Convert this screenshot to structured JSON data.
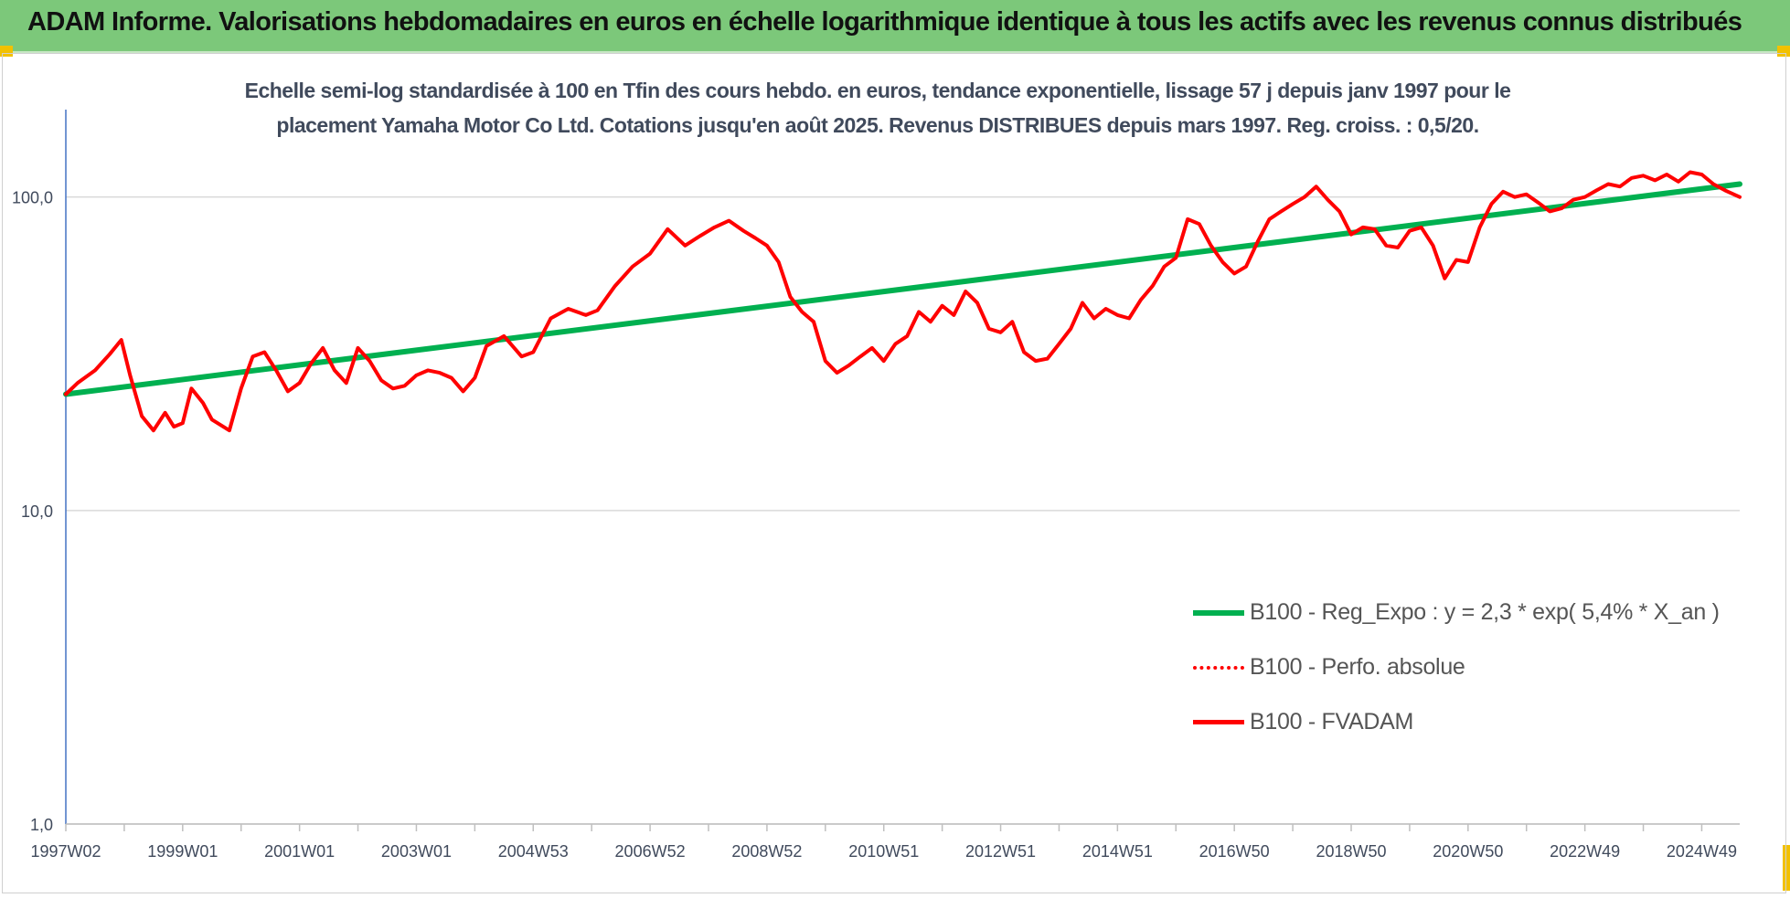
{
  "banner": {
    "title": "ADAM Informe. Valorisations hebdomadaires en euros en échelle logarithmique identique à tous les actifs avec les revenus connus distribués"
  },
  "colors": {
    "banner_bg": "#7cc87a",
    "trend": "#00b050",
    "series": "#ff0000",
    "corner": "#f2c100",
    "axis_text": "#404a5c"
  },
  "chart_data": {
    "type": "line",
    "title_lines": [
      "Echelle semi-log standardisée à 100 en Tfin des cours hebdo. en euros, tendance exponentielle, lissage 57 j depuis janv 1997 pour le",
      "placement Yamaha Motor Co Ltd. Cotations jusqu'en août 2025. Revenus DISTRIBUES depuis mars 1997. Reg. croiss. : 0,5/20."
    ],
    "y_scale": "log",
    "ylim": [
      1,
      190
    ],
    "y_ticks": [
      {
        "value": 1,
        "label": "1,0"
      },
      {
        "value": 10,
        "label": "10,0"
      },
      {
        "value": 100,
        "label": "100,0"
      }
    ],
    "xlim": [
      1997.0,
      2025.65
    ],
    "x_ticks": [
      {
        "value": 1997.0,
        "label": "1997W02"
      },
      {
        "value": 1999.0,
        "label": "1999W01"
      },
      {
        "value": 2001.0,
        "label": "2001W01"
      },
      {
        "value": 2003.0,
        "label": "2003W01"
      },
      {
        "value": 2005.0,
        "label": "2004W53"
      },
      {
        "value": 2007.0,
        "label": "2006W52"
      },
      {
        "value": 2009.0,
        "label": "2008W52"
      },
      {
        "value": 2011.0,
        "label": "2010W51"
      },
      {
        "value": 2013.0,
        "label": "2012W51"
      },
      {
        "value": 2015.0,
        "label": "2014W51"
      },
      {
        "value": 2017.0,
        "label": "2016W50"
      },
      {
        "value": 2019.0,
        "label": "2018W50"
      },
      {
        "value": 2021.0,
        "label": "2020W50"
      },
      {
        "value": 2023.0,
        "label": "2022W49"
      },
      {
        "value": 2025.0,
        "label": "2024W49"
      }
    ],
    "grid": "horizontal",
    "legend_position": "bottom-right",
    "series": [
      {
        "name": "B100 - Reg_Expo : y = 2,3 * exp( 5,4% *  X_an )",
        "style": "solid-thick",
        "color": "#00b050",
        "x": [
          1997.0,
          2025.65
        ],
        "y": [
          23.5,
          110.0
        ]
      },
      {
        "name": "B100 - Perfo. absolue",
        "style": "dotted",
        "color": "#ff0000",
        "x": [],
        "y": []
      },
      {
        "name": "B100 - FVADAM",
        "style": "solid",
        "color": "#ff0000",
        "x": [
          1997.0,
          1997.2,
          1997.5,
          1997.75,
          1997.95,
          1998.1,
          1998.3,
          1998.5,
          1998.7,
          1998.85,
          1999.0,
          1999.15,
          1999.35,
          1999.5,
          1999.8,
          2000.0,
          2000.2,
          2000.4,
          2000.6,
          2000.8,
          2001.0,
          2001.2,
          2001.4,
          2001.6,
          2001.8,
          2002.0,
          2002.2,
          2002.4,
          2002.6,
          2002.8,
          2003.0,
          2003.2,
          2003.4,
          2003.6,
          2003.8,
          2004.0,
          2004.2,
          2004.5,
          2004.8,
          2005.0,
          2005.3,
          2005.6,
          2005.9,
          2006.1,
          2006.4,
          2006.7,
          2007.0,
          2007.3,
          2007.6,
          2007.85,
          2008.1,
          2008.35,
          2008.6,
          2008.8,
          2009.0,
          2009.2,
          2009.4,
          2009.6,
          2009.8,
          2010.0,
          2010.2,
          2010.4,
          2010.6,
          2010.8,
          2011.0,
          2011.2,
          2011.4,
          2011.6,
          2011.8,
          2012.0,
          2012.2,
          2012.4,
          2012.6,
          2012.8,
          2013.0,
          2013.2,
          2013.4,
          2013.6,
          2013.8,
          2014.0,
          2014.2,
          2014.4,
          2014.6,
          2014.8,
          2015.0,
          2015.2,
          2015.4,
          2015.6,
          2015.8,
          2016.0,
          2016.2,
          2016.4,
          2016.6,
          2016.8,
          2017.0,
          2017.2,
          2017.4,
          2017.6,
          2017.8,
          2018.0,
          2018.2,
          2018.4,
          2018.6,
          2018.8,
          2019.0,
          2019.2,
          2019.4,
          2019.6,
          2019.8,
          2020.0,
          2020.2,
          2020.4,
          2020.6,
          2020.8,
          2021.0,
          2021.2,
          2021.4,
          2021.6,
          2021.8,
          2022.0,
          2022.2,
          2022.4,
          2022.6,
          2022.8,
          2023.0,
          2023.2,
          2023.4,
          2023.6,
          2023.8,
          2024.0,
          2024.2,
          2024.4,
          2024.6,
          2024.8,
          2025.0,
          2025.2,
          2025.4,
          2025.65
        ],
        "y": [
          23.5,
          25.5,
          28.0,
          31.5,
          35.0,
          27.0,
          20.0,
          18.0,
          20.5,
          18.5,
          19.0,
          24.5,
          22.0,
          19.5,
          18.0,
          24.5,
          31.0,
          32.0,
          28.0,
          24.0,
          25.5,
          29.5,
          33.0,
          28.0,
          25.5,
          33.0,
          30.0,
          26.0,
          24.5,
          25.0,
          27.0,
          28.0,
          27.5,
          26.5,
          24.0,
          26.5,
          33.5,
          36.0,
          31.0,
          32.0,
          41.0,
          44.0,
          42.0,
          43.5,
          52.0,
          60.0,
          66.0,
          79.0,
          70.0,
          75.0,
          80.0,
          84.0,
          78.0,
          74.0,
          70.0,
          62.0,
          48.0,
          43.0,
          40.0,
          30.0,
          27.5,
          29.0,
          31.0,
          33.0,
          30.0,
          34.0,
          36.0,
          43.0,
          40.0,
          45.0,
          42.0,
          50.0,
          46.0,
          38.0,
          37.0,
          40.0,
          32.0,
          30.0,
          30.5,
          34.0,
          38.0,
          46.0,
          41.0,
          44.0,
          42.0,
          41.0,
          47.0,
          52.0,
          60.0,
          64.0,
          85.0,
          82.0,
          70.0,
          62.0,
          57.0,
          60.0,
          72.0,
          85.0,
          90.0,
          95.0,
          100.0,
          108.0,
          98.0,
          90.0,
          76.0,
          80.0,
          79.0,
          70.0,
          69.0,
          78.0,
          80.0,
          70.0,
          55.0,
          63.0,
          62.0,
          80.0,
          95.0,
          104.0,
          100.0,
          102.0,
          96.0,
          90.0,
          92.0,
          98.0,
          100.0,
          105.0,
          110.0,
          108.0,
          115.0,
          117.0,
          113.0,
          118.0,
          112.0,
          120.0,
          118.0,
          110.0,
          105.0,
          100.0
        ]
      }
    ]
  }
}
